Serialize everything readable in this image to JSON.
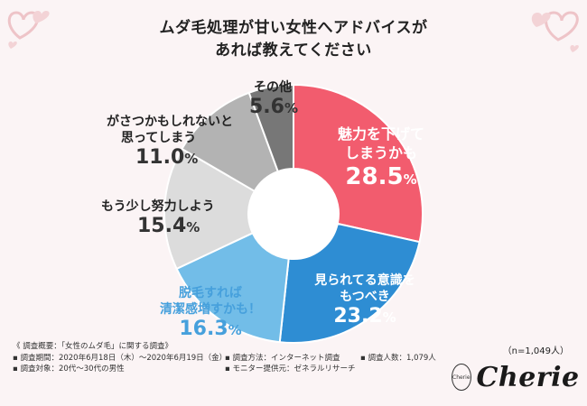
{
  "header": {
    "title_line1": "ムダ毛処理が甘い女性へアドバイスが",
    "title_line2": "あれば教えてください"
  },
  "colors": {
    "background": "#fbf4f5",
    "hearts": "#eec4c8"
  },
  "chart_data": {
    "type": "pie",
    "donut": true,
    "slices": [
      {
        "label_lines": [
          "魅力を下げて",
          "しまうかも"
        ],
        "percent": "28.5",
        "value": 28.5,
        "color": "#f25c6e",
        "label_style": "white"
      },
      {
        "label_lines": [
          "見られてる意識を",
          "もつべき"
        ],
        "percent": "23.2",
        "value": 23.2,
        "color": "#2e8dd3",
        "label_style": "white"
      },
      {
        "label_lines": [
          "脱毛すれば",
          "清潔感増すかも！"
        ],
        "percent": "16.3",
        "value": 16.3,
        "color": "#72bde8",
        "label_style": "blue"
      },
      {
        "label_lines": [
          "もう少し努力しよう"
        ],
        "percent": "15.4",
        "value": 15.4,
        "color": "#dcdcdc",
        "label_style": "dark"
      },
      {
        "label_lines": [
          "がさつかもしれないと",
          "思ってしまう"
        ],
        "percent": "11.0",
        "value": 11.0,
        "color": "#b3b3b3",
        "label_style": "dark"
      },
      {
        "label_lines": [
          "その他"
        ],
        "percent": "5.6",
        "value": 5.6,
        "color": "#777777",
        "label_style": "dark"
      }
    ],
    "unit": "%"
  },
  "survey": {
    "overview": "《 調査概要：「女性のムダ毛」に関する調査》",
    "period": "▪ 調査期間：2020年6月18日（木）〜2020年6月19日（金）",
    "method": "▪ 調査方法：インターネット調査",
    "people": "▪ 調査人数：1,079人",
    "target": "▪ 調査対象：20代〜30代の男性",
    "provider": "▪ モニター提供元：ゼネラルリサーチ"
  },
  "sample_size": "（n=1,049人）",
  "brand": {
    "name": "Cherie",
    "mark_text": "Cherie"
  }
}
